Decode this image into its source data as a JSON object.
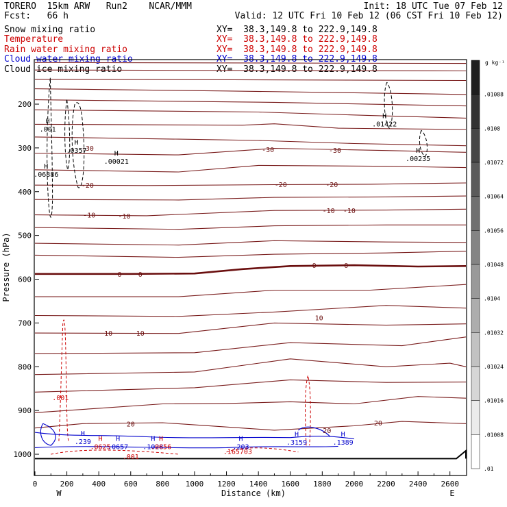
{
  "header": {
    "line1_left": "TORERO  15km ARW   Run2    NCAR/MMM",
    "line1_right": "Init: 18 UTC Tue 07 Feb 12",
    "line2_left": "Fcst:   66 h",
    "line2_right": "Valid: 12 UTC Fri 10 Feb 12 (06 CST Fri 10 Feb 12)"
  },
  "fields": [
    {
      "name": "Snow mixing ratio",
      "xy": "XY=  38.3,149.8 to 222.9,149.8",
      "color": "#000000"
    },
    {
      "name": "Temperature",
      "xy": "XY=  38.3,149.8 to 222.9,149.8",
      "color": "#cc0000"
    },
    {
      "name": "Rain water mixing ratio",
      "xy": "XY=  38.3,149.8 to 222.9,149.8",
      "color": "#cc0000"
    },
    {
      "name": "Cloud water mixing ratio",
      "xy": "XY=  38.3,149.8 to 222.9,149.8",
      "color": "#0000cc"
    },
    {
      "name": "Cloud ice mixing ratio",
      "xy": "XY=  38.3,149.8 to 222.9,149.8",
      "color": "#000000"
    }
  ],
  "chart_data": {
    "type": "contour-cross-section",
    "xlabel": "Distance (km)",
    "ylabel": "Pressure (hPa)",
    "xlim": [
      0,
      2700
    ],
    "ylim": [
      1050,
      100
    ],
    "x_ticks": [
      0,
      200,
      400,
      600,
      800,
      1000,
      1200,
      1400,
      1600,
      1800,
      2000,
      2200,
      2400,
      2600
    ],
    "y_ticks": [
      200,
      300,
      400,
      500,
      600,
      700,
      800,
      900,
      1000
    ],
    "x_end_labels": {
      "left": "W",
      "right": "E"
    },
    "colorbar": {
      "unit": "g kg⁻¹",
      "labels": [
        ".01088",
        ".0108",
        ".01072",
        ".01064",
        ".01056",
        ".01048",
        ".0104",
        ".01032",
        ".01024",
        ".01016",
        ".01008",
        ".01"
      ]
    },
    "temperature_labels": [
      {
        "text": "-30",
        "x": 330,
        "p": 300
      },
      {
        "text": "-30",
        "x": 1460,
        "p": 303
      },
      {
        "text": "-30",
        "x": 1880,
        "p": 305
      },
      {
        "text": "-20",
        "x": 330,
        "p": 385
      },
      {
        "text": "-20",
        "x": 1540,
        "p": 383
      },
      {
        "text": "-20",
        "x": 1860,
        "p": 383
      },
      {
        "text": "-10",
        "x": 340,
        "p": 453
      },
      {
        "text": "-10",
        "x": 560,
        "p": 455
      },
      {
        "text": "-10",
        "x": 1840,
        "p": 443
      },
      {
        "text": "-10",
        "x": 1970,
        "p": 443
      },
      {
        "text": "0",
        "x": 530,
        "p": 588
      },
      {
        "text": "0",
        "x": 660,
        "p": 588
      },
      {
        "text": "0",
        "x": 1750,
        "p": 568
      },
      {
        "text": "0",
        "x": 1950,
        "p": 568
      },
      {
        "text": "10",
        "x": 460,
        "p": 723
      },
      {
        "text": "10",
        "x": 660,
        "p": 723
      },
      {
        "text": "10",
        "x": 1780,
        "p": 688
      },
      {
        "text": "20",
        "x": 600,
        "p": 930
      },
      {
        "text": "20",
        "x": 1830,
        "p": 945
      },
      {
        "text": "20",
        "x": 2150,
        "p": 928
      }
    ],
    "max_labels": [
      {
        "mark": "H",
        "text": ".001",
        "x": 80,
        "p": 256,
        "color": "#000000"
      },
      {
        "mark": "H",
        "text": ".0357",
        "x": 260,
        "p": 305,
        "color": "#000000"
      },
      {
        "mark": "H",
        "text": ".00021",
        "x": 510,
        "p": 330,
        "color": "#000000"
      },
      {
        "mark": "H",
        "text": ".06886",
        "x": 70,
        "p": 360,
        "color": "#000000"
      },
      {
        "mark": "H",
        "text": ".01422",
        "x": 2190,
        "p": 245,
        "color": "#000000"
      },
      {
        "mark": "H",
        "text": ".00235",
        "x": 2400,
        "p": 324,
        "color": "#000000"
      },
      {
        "mark": "",
        "text": ".001",
        "x": 160,
        "p": 870,
        "color": "#cc0000"
      },
      {
        "mark": "H",
        "text": ".239",
        "x": 300,
        "p": 970,
        "color": "#0000cc"
      },
      {
        "mark": "H",
        "text": ".0625",
        "x": 410,
        "p": 982,
        "color": "#cc0000"
      },
      {
        "mark": "H",
        "text": ".0657",
        "x": 520,
        "p": 982,
        "color": "#0000cc"
      },
      {
        "mark": "H",
        "text": ".1028",
        "x": 740,
        "p": 982,
        "color": "#0000cc"
      },
      {
        "mark": "H",
        "text": ".0656",
        "x": 790,
        "p": 982,
        "color": "#cc0000"
      },
      {
        "mark": "H",
        "text": ".203",
        "x": 1290,
        "p": 982,
        "color": "#0000cc"
      },
      {
        "mark": "",
        "text": ".165703",
        "x": 1270,
        "p": 993,
        "color": "#cc0000"
      },
      {
        "mark": "H",
        "text": ".3159",
        "x": 1640,
        "p": 972,
        "color": "#0000cc"
      },
      {
        "mark": "H",
        "text": ".1389",
        "x": 1930,
        "p": 972,
        "color": "#0000cc"
      },
      {
        "mark": "",
        "text": ".001",
        "x": 600,
        "p": 1005,
        "color": "#cc0000"
      }
    ]
  }
}
